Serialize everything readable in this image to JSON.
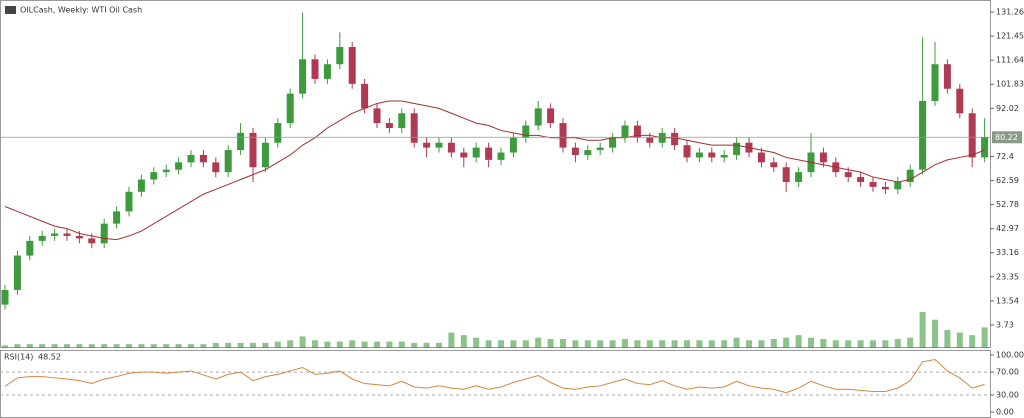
{
  "chart_data": [
    {
      "type": "candlestick",
      "title": "OILCash, Weekly: WTI Oil Cash",
      "up_color": "#3d9b3d",
      "down_color": "#b03a52",
      "open": [
        12,
        18,
        32,
        38,
        40,
        41,
        40,
        39,
        37,
        45,
        50,
        58,
        63,
        66,
        67,
        70,
        73,
        70,
        66,
        75,
        82,
        68,
        78,
        86,
        98,
        112,
        104,
        110,
        117,
        102,
        92,
        86,
        84,
        90,
        78,
        76,
        78,
        74,
        72,
        76,
        71,
        74,
        80,
        85,
        92,
        86,
        76,
        73,
        75,
        76,
        80,
        85,
        80,
        78,
        82,
        77,
        72,
        74,
        72,
        73,
        78,
        74,
        70,
        68,
        62,
        66,
        74,
        70,
        66,
        64,
        62,
        60,
        59,
        62,
        67,
        95,
        110,
        100,
        90,
        72
      ],
      "high": [
        20,
        34,
        40,
        42,
        43,
        43,
        42,
        41,
        47,
        52,
        60,
        65,
        68,
        69,
        72,
        75,
        75,
        72,
        77,
        86,
        84,
        80,
        88,
        100,
        131,
        114,
        112,
        123,
        119,
        104,
        94,
        88,
        92,
        92,
        80,
        80,
        80,
        76,
        78,
        78,
        76,
        82,
        87,
        95,
        94,
        88,
        78,
        77,
        78,
        82,
        87,
        87,
        82,
        84,
        84,
        79,
        76,
        76,
        75,
        80,
        80,
        76,
        72,
        70,
        68,
        82,
        76,
        72,
        68,
        66,
        64,
        62,
        64,
        69,
        121,
        119,
        112,
        102,
        92,
        88
      ],
      "low": [
        10,
        16,
        30,
        36,
        38,
        38,
        37,
        35,
        35,
        43,
        48,
        56,
        61,
        64,
        65,
        68,
        68,
        64,
        64,
        73,
        62,
        66,
        76,
        84,
        96,
        102,
        102,
        108,
        100,
        90,
        84,
        82,
        82,
        76,
        72,
        74,
        72,
        68,
        70,
        68,
        69,
        72,
        78,
        83,
        84,
        74,
        70,
        71,
        73,
        74,
        78,
        78,
        76,
        76,
        75,
        70,
        70,
        70,
        70,
        71,
        72,
        68,
        66,
        58,
        60,
        64,
        68,
        64,
        62,
        60,
        58,
        57,
        57,
        60,
        65,
        93,
        98,
        88,
        68,
        70
      ],
      "close": [
        18,
        32,
        38,
        40,
        41,
        40,
        39,
        37,
        45,
        50,
        58,
        63,
        66,
        67,
        70,
        73,
        70,
        66,
        75,
        82,
        68,
        78,
        86,
        98,
        112,
        104,
        110,
        117,
        102,
        92,
        86,
        84,
        90,
        78,
        76,
        78,
        74,
        72,
        76,
        71,
        74,
        80,
        85,
        92,
        86,
        76,
        73,
        75,
        76,
        80,
        85,
        80,
        78,
        82,
        77,
        72,
        74,
        72,
        73,
        78,
        74,
        70,
        68,
        62,
        66,
        74,
        70,
        66,
        64,
        62,
        60,
        59,
        62,
        67,
        95,
        110,
        100,
        90,
        72,
        80.22
      ],
      "moving_average": {
        "color": "#a0312c",
        "values": [
          52,
          50,
          48,
          46,
          44,
          43,
          41,
          40,
          39,
          38.5,
          40,
          42,
          45,
          48,
          51,
          54,
          57,
          59,
          61,
          63,
          65,
          67,
          70,
          73,
          77,
          80,
          84,
          87,
          90,
          92,
          94,
          95,
          95,
          94,
          93,
          92,
          90,
          88,
          86,
          85,
          83,
          82,
          81,
          81,
          80,
          80,
          80,
          79,
          79,
          80,
          80,
          81,
          81,
          80,
          80,
          79,
          78,
          77,
          77,
          77,
          76,
          75,
          74,
          72,
          71,
          70,
          69,
          68,
          67,
          66,
          64,
          63,
          62,
          63,
          66,
          69,
          71,
          72,
          73,
          75
        ]
      },
      "volume": {
        "color": "#3d9b3d",
        "values": [
          2,
          3,
          3,
          3,
          3,
          3,
          3,
          3,
          3,
          3,
          3,
          3,
          3,
          3,
          3,
          3,
          3,
          4,
          4,
          4,
          4,
          4,
          5,
          6,
          9,
          6,
          5,
          5,
          6,
          5,
          5,
          5,
          5,
          4,
          4,
          4,
          12,
          10,
          8,
          6,
          6,
          6,
          6,
          8,
          7,
          7,
          6,
          6,
          6,
          6,
          7,
          6,
          6,
          6,
          6,
          6,
          6,
          6,
          6,
          8,
          6,
          6,
          7,
          8,
          10,
          8,
          7,
          6,
          6,
          6,
          6,
          6,
          7,
          8,
          28,
          22,
          14,
          12,
          10,
          16
        ]
      },
      "ylim": [
        -5.67,
        135.76
      ],
      "yticks": [
        131.26,
        121.45,
        111.64,
        101.83,
        92.02,
        72.4,
        62.59,
        52.78,
        42.97,
        33.16,
        23.35,
        13.54,
        3.73
      ]
    },
    {
      "type": "line",
      "title": "RSI(14)",
      "color": "#d4873e",
      "values": [
        45,
        60,
        62,
        62,
        60,
        58,
        55,
        50,
        58,
        62,
        68,
        70,
        70,
        68,
        70,
        72,
        65,
        58,
        66,
        70,
        55,
        62,
        66,
        72,
        78,
        66,
        68,
        72,
        58,
        50,
        48,
        46,
        54,
        44,
        42,
        46,
        42,
        40,
        46,
        40,
        44,
        52,
        58,
        64,
        52,
        42,
        40,
        44,
        46,
        52,
        58,
        50,
        48,
        55,
        46,
        40,
        44,
        42,
        44,
        54,
        46,
        42,
        40,
        34,
        42,
        54,
        46,
        40,
        40,
        38,
        36,
        36,
        42,
        55,
        88,
        92,
        72,
        60,
        42,
        48.52
      ],
      "ylim": [
        -10.3,
        106.9
      ],
      "yticks": [
        {
          "value": 100,
          "label": "100.00"
        },
        {
          "value": 70,
          "label": "70.00"
        },
        {
          "value": 30,
          "label": "30.00"
        },
        {
          "value": 0,
          "label": "0.00"
        }
      ]
    }
  ]
}
